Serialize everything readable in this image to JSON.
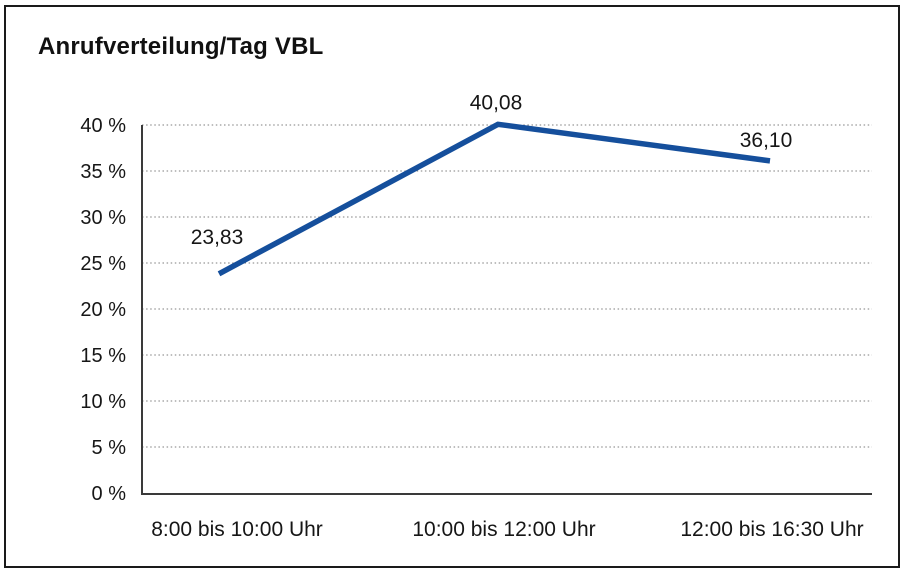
{
  "page": {
    "background_color": "#ffffff",
    "frame_border_color": "#1a1a1a"
  },
  "chart_data": {
    "type": "line",
    "title": "Anrufverteilung/Tag VBL",
    "categories": [
      "8:00 bis 10:00 Uhr",
      "10:00 bis 12:00 Uhr",
      "12:00 bis 16:30 Uhr"
    ],
    "series": [
      {
        "name": "Anrufverteilung/Tag VBL",
        "values": [
          23.83,
          40.08,
          36.1
        ]
      }
    ],
    "data_labels": [
      "23,83",
      "40,08",
      "36,10"
    ],
    "xlabel": "",
    "ylabel": "",
    "ylim": [
      0,
      40
    ],
    "ytick_step": 5,
    "ytick_labels": [
      "0 %",
      "5 %",
      "10 %",
      "15 %",
      "20 %",
      "25 %",
      "30 %",
      "35 %",
      "40 %"
    ],
    "grid": "horizontal dotted",
    "legend": "none",
    "line_color": "#154F9C",
    "axis_color": "#3a3a3a",
    "gridline_color": "#7d7d7d",
    "text_color": "#161616"
  }
}
